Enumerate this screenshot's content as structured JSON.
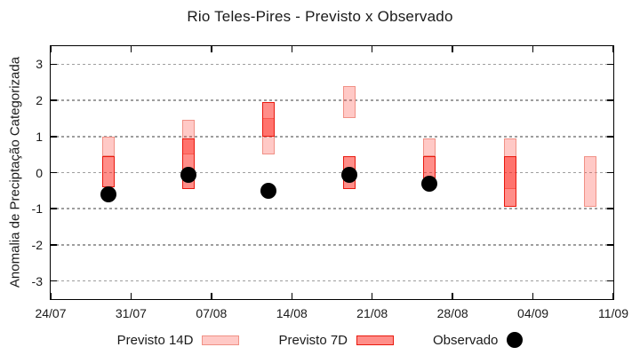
{
  "title": "Rio Teles-Pires - Previsto x Observado",
  "ylabel": "Anomalia de Preciptação Categorizada",
  "legend": {
    "items": [
      {
        "label": "Previsto 14D",
        "swatch": "light-pink-box"
      },
      {
        "label": "Previsto 7D",
        "swatch": "red-box"
      },
      {
        "label": "Observado",
        "swatch": "black-dot"
      }
    ]
  },
  "colors": {
    "fill_14d": "rgba(255,60,50,0.28)",
    "border_14d": "#f09186",
    "fill_7d": "rgba(255,30,20,0.5)",
    "border_7d": "#e9190e",
    "observed": "#000000",
    "grid": "#9e9e9e",
    "axis": "#000000"
  },
  "chart_data": {
    "type": "box",
    "subtype": "forecast-range-boxes-with-observed-scatter",
    "title": "Rio Teles-Pires - Previsto x Observado",
    "xlabel": "",
    "ylabel": "Anomalia de Preciptação Categorizada",
    "ylim": [
      -3.5,
      3.5
    ],
    "yticks": [
      3,
      2,
      1,
      0,
      -1,
      -2,
      -3
    ],
    "grid": "horizontal-dashed",
    "legend_position": "bottom-center",
    "x_axis_span_days": 49,
    "xticks": {
      "days": [
        0,
        7,
        14,
        21,
        28,
        35,
        42,
        49
      ],
      "labels": [
        "24/07",
        "31/07",
        "07/08",
        "14/08",
        "21/08",
        "28/08",
        "04/09",
        "11/09"
      ]
    },
    "series": [
      {
        "name": "Previsto 14D",
        "type": "box",
        "points": [
          {
            "day": 5,
            "low": 0.45,
            "high": 1.0
          },
          {
            "day": 12,
            "low": 0.5,
            "high": 1.45
          },
          {
            "day": 19,
            "low": 0.5,
            "high": 1.5
          },
          {
            "day": 26,
            "low": 1.5,
            "high": 2.4
          },
          {
            "day": 33,
            "low": 0.45,
            "high": 0.95
          },
          {
            "day": 40,
            "low": -0.45,
            "high": 0.95
          },
          {
            "day": 47,
            "low": -0.95,
            "high": 0.45
          }
        ]
      },
      {
        "name": "Previsto 7D",
        "type": "box",
        "points": [
          {
            "day": 5,
            "low": -0.4,
            "high": 0.45
          },
          {
            "day": 12,
            "low": -0.45,
            "high": 0.95
          },
          {
            "day": 19,
            "low": 1.0,
            "high": 1.95
          },
          {
            "day": 26,
            "low": -0.45,
            "high": 0.45
          },
          {
            "day": 33,
            "low": -0.15,
            "high": 0.45
          },
          {
            "day": 40,
            "low": -0.95,
            "high": 0.45
          }
        ]
      },
      {
        "name": "Observado",
        "type": "scatter",
        "points": [
          {
            "day": 5,
            "value": -0.6
          },
          {
            "day": 12,
            "value": -0.05
          },
          {
            "day": 19,
            "value": -0.5
          },
          {
            "day": 26,
            "value": -0.05
          },
          {
            "day": 33,
            "value": -0.3
          }
        ]
      }
    ]
  }
}
